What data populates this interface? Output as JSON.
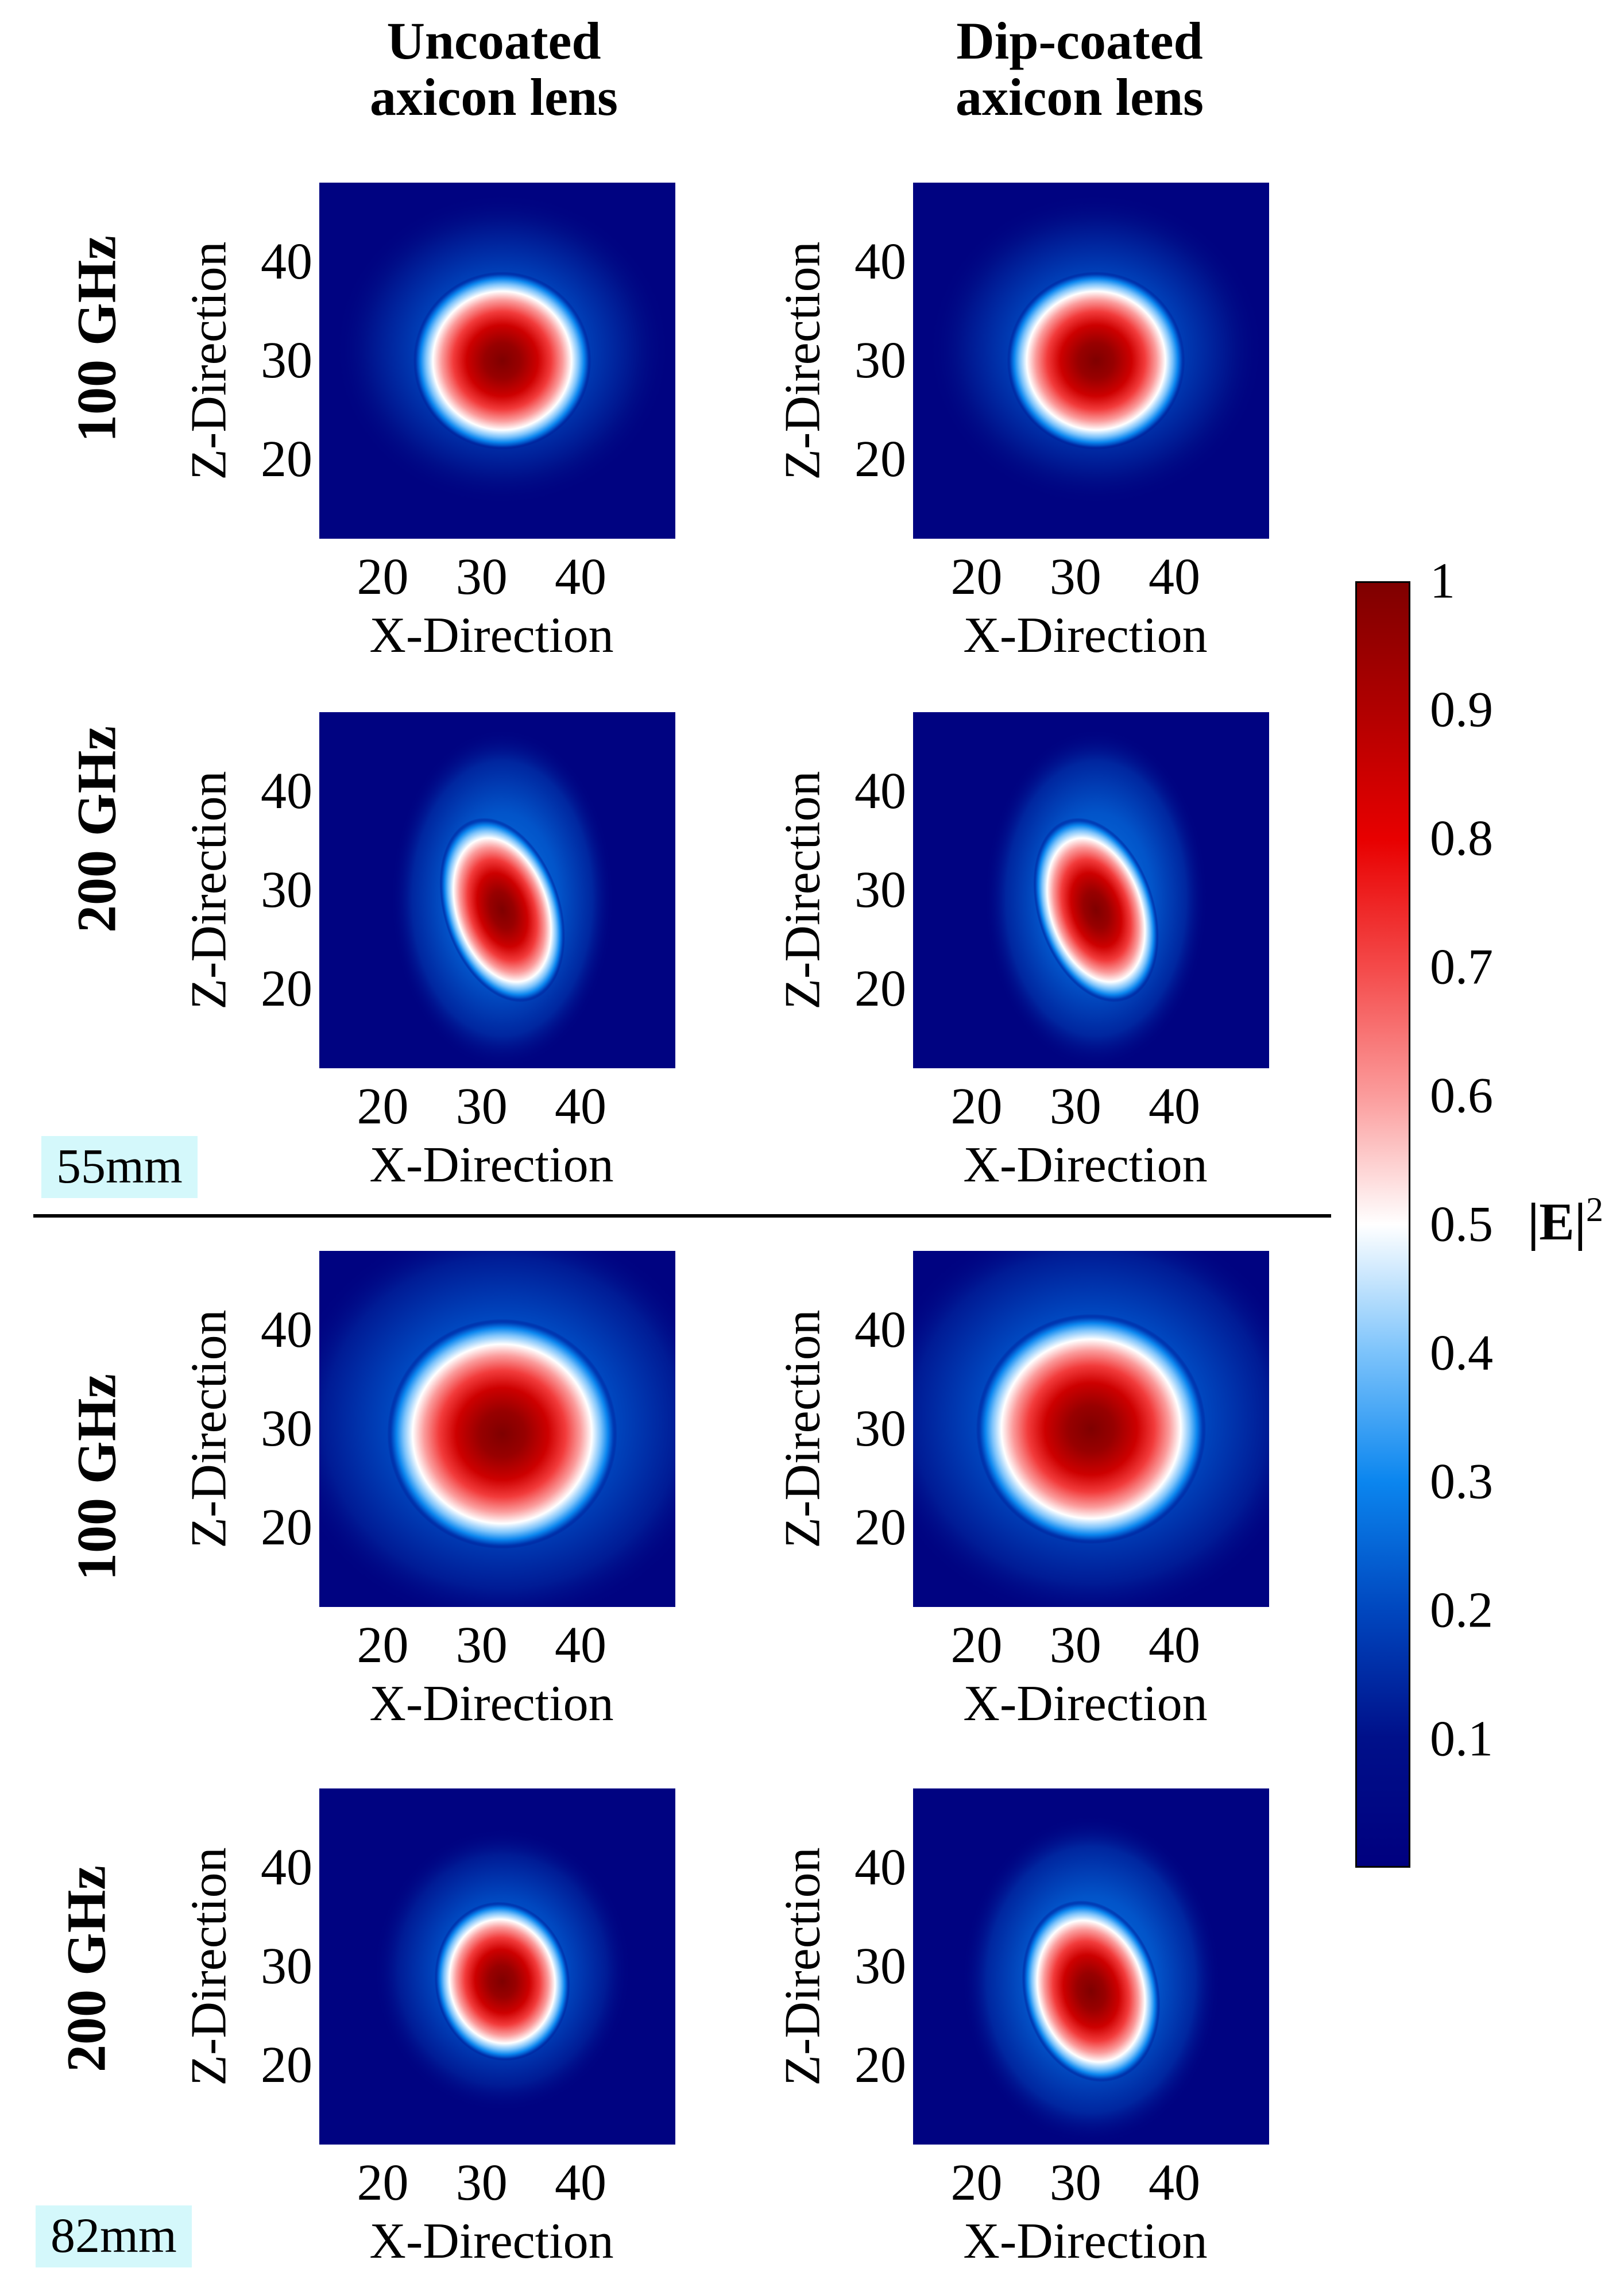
{
  "chart_data": {
    "type": "heatmap",
    "colormap": {
      "stops": [
        {
          "v": 0.0,
          "color": "#00007f"
        },
        {
          "v": 0.1,
          "color": "#00108a"
        },
        {
          "v": 0.2,
          "color": "#0047bf"
        },
        {
          "v": 0.3,
          "color": "#0b86ef"
        },
        {
          "v": 0.4,
          "color": "#7cc3fb"
        },
        {
          "v": 0.5,
          "color": "#ffffff"
        },
        {
          "v": 0.6,
          "color": "#fb9c9c"
        },
        {
          "v": 0.7,
          "color": "#f44a4a"
        },
        {
          "v": 0.8,
          "color": "#e80000"
        },
        {
          "v": 0.9,
          "color": "#b10000"
        },
        {
          "v": 1.0,
          "color": "#7f0000"
        }
      ]
    },
    "colorbar": {
      "label": "|E|",
      "label_superscript": "2",
      "ticks": [
        "1",
        "0.9",
        "0.8",
        "0.7",
        "0.6",
        "0.5",
        "0.4",
        "0.3",
        "0.2",
        "0.1"
      ],
      "range": [
        0.0,
        1.0
      ]
    },
    "column_headers": [
      {
        "line1": "Uncoated",
        "line2": "axicon lens"
      },
      {
        "line1": "Dip-coated",
        "line2": "axicon lens"
      }
    ],
    "groups": [
      {
        "distance_label": "55mm"
      },
      {
        "distance_label": "82mm"
      }
    ],
    "row_labels": [
      "100 GHz",
      "200 GHz",
      "100 GHz",
      "200 GHz"
    ],
    "axes": {
      "xlabel": "X-Direction",
      "ylabel": "Z-Direction",
      "xlim": [
        13,
        49
      ],
      "ylim": [
        12,
        48
      ],
      "xticks": [
        "20",
        "30",
        "40"
      ],
      "yticks": [
        "40",
        "30",
        "20"
      ]
    },
    "panels": [
      {
        "row": 0,
        "col": 0,
        "cx": 31.5,
        "cz": 30.0,
        "sx": 5.8,
        "sz": 5.8,
        "tilt": 0,
        "peak": 1.0,
        "halo": 0.1
      },
      {
        "row": 0,
        "col": 1,
        "cx": 31.5,
        "cz": 30.0,
        "sx": 5.8,
        "sz": 5.8,
        "tilt": 0,
        "peak": 1.0,
        "halo": 0.1
      },
      {
        "row": 1,
        "col": 0,
        "cx": 31.5,
        "cz": 28.0,
        "sx": 3.8,
        "sz": 6.2,
        "tilt": -18,
        "peak": 1.0,
        "halo": 0.14
      },
      {
        "row": 1,
        "col": 1,
        "cx": 31.5,
        "cz": 28.0,
        "sx": 3.8,
        "sz": 6.2,
        "tilt": -18,
        "peak": 1.0,
        "halo": 0.14
      },
      {
        "row": 2,
        "col": 0,
        "cx": 31.5,
        "cz": 29.5,
        "sx": 7.5,
        "sz": 7.5,
        "tilt": 0,
        "peak": 1.0,
        "halo": 0.12
      },
      {
        "row": 2,
        "col": 1,
        "cx": 31.0,
        "cz": 30.0,
        "sx": 7.5,
        "sz": 7.5,
        "tilt": 0,
        "peak": 1.0,
        "halo": 0.12
      },
      {
        "row": 3,
        "col": 0,
        "cx": 31.5,
        "cz": 28.5,
        "sx": 4.4,
        "sz": 5.2,
        "tilt": -8,
        "peak": 1.0,
        "halo": 0.12
      },
      {
        "row": 3,
        "col": 1,
        "cx": 31.0,
        "cz": 27.5,
        "sx": 4.4,
        "sz": 6.0,
        "tilt": -14,
        "peak": 1.0,
        "halo": 0.14
      }
    ]
  }
}
